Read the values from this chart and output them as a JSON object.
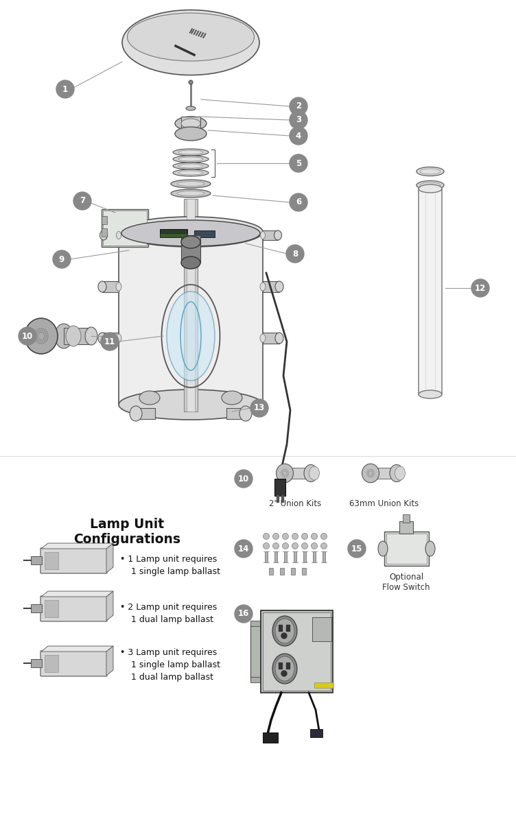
{
  "bg_color": "#ffffff",
  "label_bg_color": "#888888",
  "label_text_color": "#ffffff",
  "lamp_config_title": "Lamp Unit\nConfigurations",
  "lamp_config_items": [
    "• 1 Lamp unit requires\n    1 single lamp ballast",
    "• 2 Lamp unit requires\n    1 dual lamp ballast",
    "• 3 Lamp unit requires\n    1 single lamp ballast\n    1 dual lamp ballast"
  ],
  "union_label_2in": "2\" Union Kits",
  "union_label_63mm": "63mm Union Kits",
  "flow_switch_label": "Optional\nFlow Switch",
  "line_color": "#999999",
  "outline_color": "#555555",
  "part_gray": "#c8c8c8",
  "part_light": "#e8e8e8",
  "part_mid": "#b0b0b0"
}
